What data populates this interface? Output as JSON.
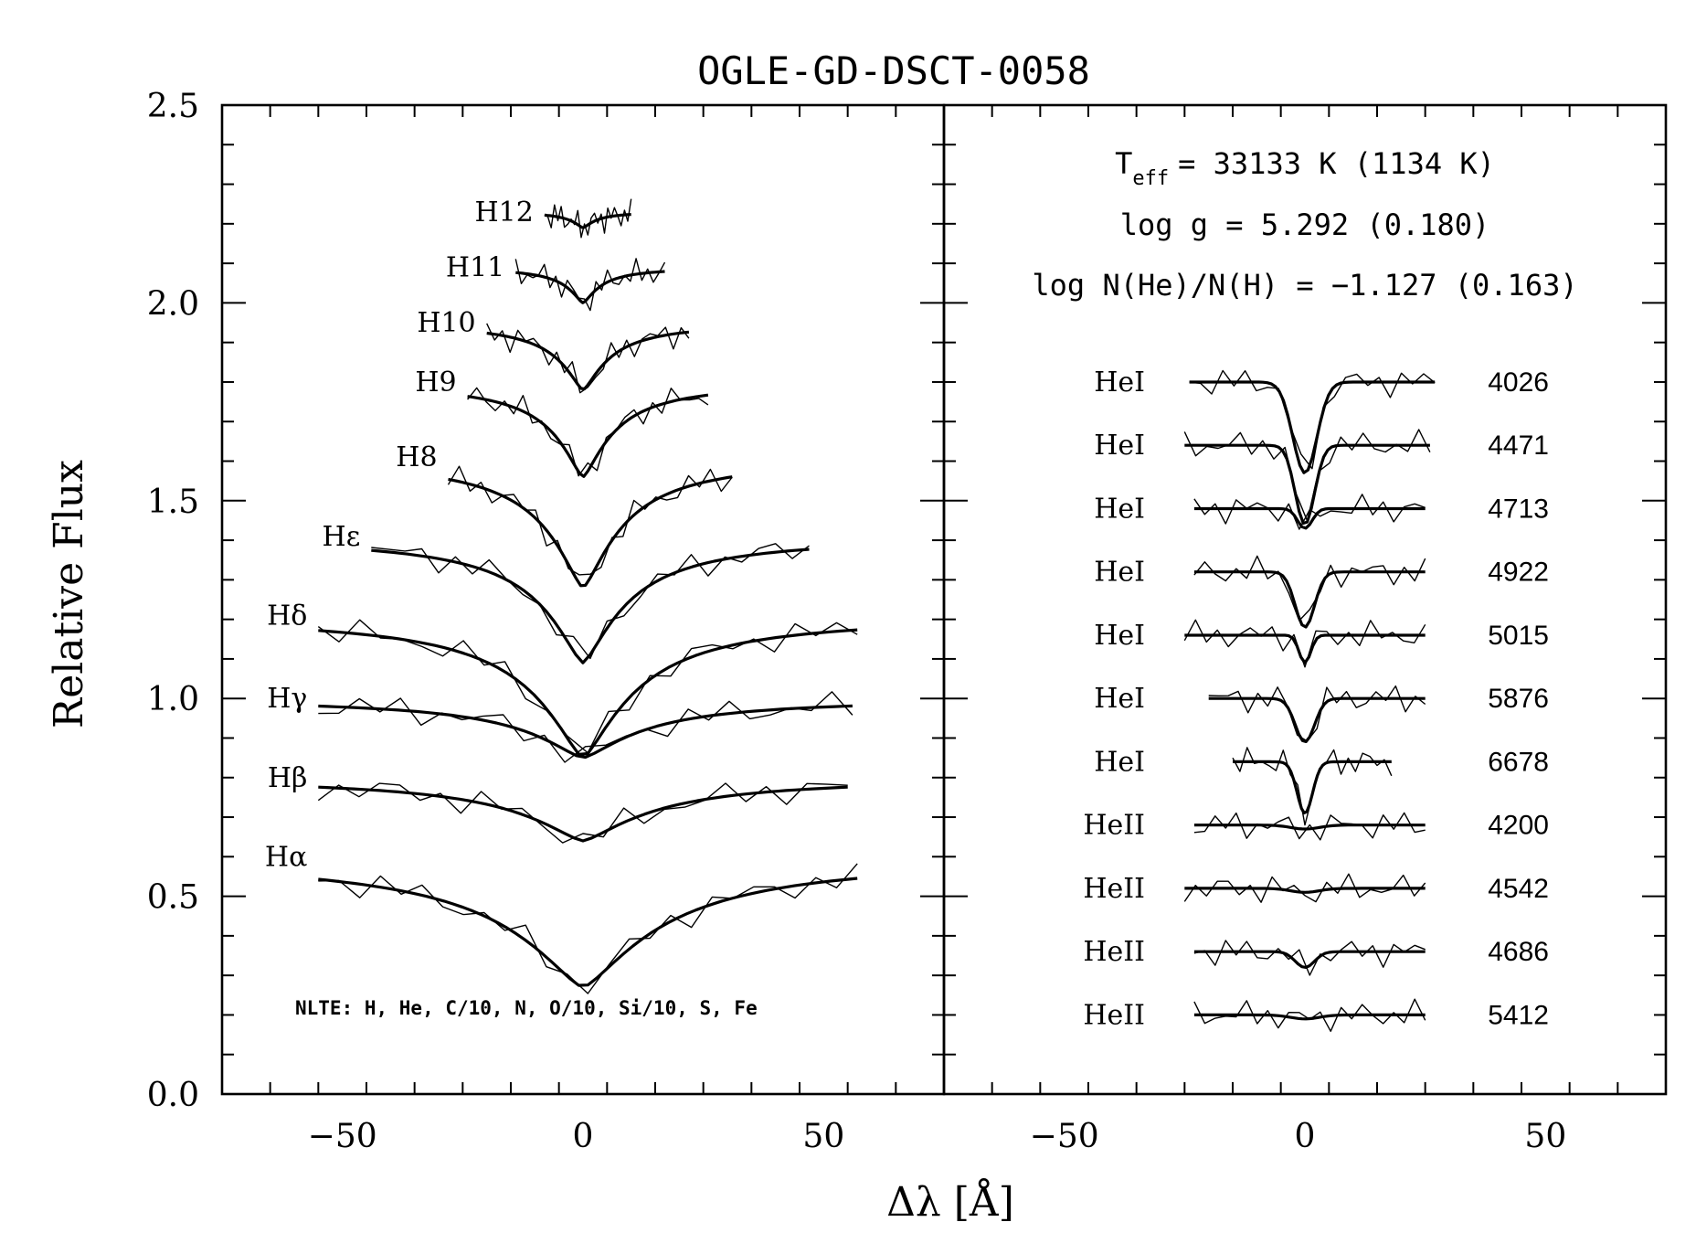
{
  "chart_data": {
    "type": "line",
    "title": "OGLE-GD-DSCT-0058",
    "ylabel": "Relative Flux",
    "xlabel": "Δλ [Å]",
    "ylim": [
      0,
      2.5
    ],
    "y_ticks": [
      "0.0",
      "0.5",
      "1.0",
      "1.5",
      "2.0",
      "2.5"
    ],
    "panels": [
      {
        "name": "balmer",
        "xlim": [
          -75,
          75
        ],
        "x_ticks": [
          "−50",
          "0",
          "50"
        ],
        "note": "NLTE: H, He, C/10, N, O/10, Si/10, S, Fe",
        "lines": [
          {
            "label": "H12",
            "baseline": 2.23,
            "depth": 0.04,
            "width": 3,
            "xrange": [
              -8,
              10
            ]
          },
          {
            "label": "H11",
            "baseline": 2.09,
            "depth": 0.09,
            "width": 4,
            "xrange": [
              -14,
              17
            ]
          },
          {
            "label": "H10",
            "baseline": 1.95,
            "depth": 0.17,
            "width": 6,
            "xrange": [
              -20,
              22
            ]
          },
          {
            "label": "H9",
            "baseline": 1.8,
            "depth": 0.24,
            "width": 7,
            "xrange": [
              -24,
              26
            ]
          },
          {
            "label": "H8",
            "baseline": 1.61,
            "depth": 0.33,
            "width": 9,
            "xrange": [
              -28,
              31
            ]
          },
          {
            "label": "Hε",
            "baseline": 1.41,
            "depth": 0.32,
            "width": 10,
            "xrange": [
              -44,
              47
            ]
          },
          {
            "label": "Hδ",
            "baseline": 1.21,
            "depth": 0.36,
            "width": 12,
            "xrange": [
              -55,
              57
            ]
          },
          {
            "label": "Hγ",
            "baseline": 1.0,
            "depth": 0.15,
            "width": 14,
            "xrange": [
              -55,
              56
            ]
          },
          {
            "label": "Hβ",
            "baseline": 0.8,
            "depth": 0.16,
            "width": 16,
            "xrange": [
              -55,
              55
            ]
          },
          {
            "label": "Hα",
            "baseline": 0.6,
            "depth": 0.33,
            "width": 18,
            "xrange": [
              -55,
              57
            ]
          }
        ]
      },
      {
        "name": "helium",
        "xlim": [
          -75,
          75
        ],
        "x_ticks": [
          "−50",
          "0",
          "50"
        ],
        "parameters": {
          "teff_label": "T",
          "teff_sub": "eff",
          "teff_value": "= 33133 K (1134 K)",
          "logg": "log g = 5.292 (0.180)",
          "loghe": "log N(He)/N(H) = −1.127 (0.163)"
        },
        "lines": [
          {
            "ion": "HeI",
            "wavelength": "4026",
            "baseline": 1.8,
            "depth": 0.23,
            "width": 2.5,
            "xrange": [
              -24,
              27
            ]
          },
          {
            "ion": "HeI",
            "wavelength": "4471",
            "baseline": 1.64,
            "depth": 0.2,
            "width": 2.0,
            "xrange": [
              -25,
              26
            ]
          },
          {
            "ion": "HeI",
            "wavelength": "4713",
            "baseline": 1.48,
            "depth": 0.05,
            "width": 1.5,
            "xrange": [
              -23,
              25
            ]
          },
          {
            "ion": "HeI",
            "wavelength": "4922",
            "baseline": 1.32,
            "depth": 0.14,
            "width": 2.0,
            "xrange": [
              -23,
              25
            ]
          },
          {
            "ion": "HeI",
            "wavelength": "5015",
            "baseline": 1.16,
            "depth": 0.07,
            "width": 1.2,
            "xrange": [
              -25,
              25
            ]
          },
          {
            "ion": "HeI",
            "wavelength": "5876",
            "baseline": 1.0,
            "depth": 0.11,
            "width": 2.0,
            "xrange": [
              -20,
              25
            ]
          },
          {
            "ion": "HeI",
            "wavelength": "6678",
            "baseline": 0.84,
            "depth": 0.13,
            "width": 1.6,
            "xrange": [
              -15,
              18
            ]
          },
          {
            "ion": "HeII",
            "wavelength": "4200",
            "baseline": 0.68,
            "depth": 0.01,
            "width": 3.0,
            "xrange": [
              -23,
              25
            ]
          },
          {
            "ion": "HeII",
            "wavelength": "4542",
            "baseline": 0.52,
            "depth": 0.01,
            "width": 3.0,
            "xrange": [
              -25,
              25
            ]
          },
          {
            "ion": "HeII",
            "wavelength": "4686",
            "baseline": 0.36,
            "depth": 0.04,
            "width": 2.0,
            "xrange": [
              -23,
              25
            ]
          },
          {
            "ion": "HeII",
            "wavelength": "5412",
            "baseline": 0.2,
            "depth": 0.01,
            "width": 3.0,
            "xrange": [
              -23,
              25
            ]
          }
        ]
      }
    ]
  }
}
